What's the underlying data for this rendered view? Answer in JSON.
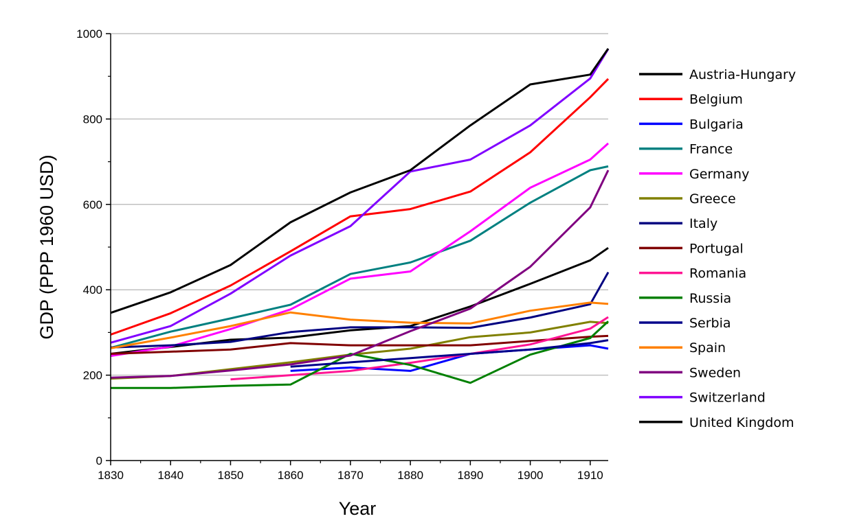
{
  "chart_data": {
    "type": "line",
    "xlabel": "Year",
    "ylabel": "GDP (PPP 1960 USD)",
    "xlim": [
      1830,
      1913
    ],
    "ylim": [
      0,
      1000
    ],
    "x_ticks": [
      1830,
      1840,
      1850,
      1860,
      1870,
      1880,
      1890,
      1900,
      1910
    ],
    "y_ticks": [
      0,
      200,
      400,
      600,
      800,
      1000
    ],
    "grid": "horizontal",
    "legend_position": "right",
    "series": [
      {
        "name": "Austria-Hungary",
        "color": "#000000",
        "x": [
          1830,
          1840,
          1850,
          1860,
          1870,
          1880,
          1890,
          1900,
          1910,
          1913
        ],
        "y": [
          250,
          266,
          283,
          288,
          305,
          315,
          361,
          414,
          469,
          498
        ]
      },
      {
        "name": "Belgium",
        "color": "#ff0000",
        "x": [
          1830,
          1840,
          1850,
          1860,
          1870,
          1880,
          1890,
          1900,
          1910,
          1913
        ],
        "y": [
          295,
          345,
          410,
          490,
          572,
          589,
          630,
          722,
          851,
          894
        ]
      },
      {
        "name": "Bulgaria",
        "color": "#0000ff",
        "x": [
          1860,
          1870,
          1880,
          1890,
          1900,
          1910,
          1913
        ],
        "y": [
          210,
          218,
          210,
          250,
          260,
          270,
          262
        ]
      },
      {
        "name": "France",
        "color": "#008080",
        "x": [
          1830,
          1840,
          1850,
          1860,
          1870,
          1880,
          1890,
          1900,
          1910,
          1913
        ],
        "y": [
          264,
          302,
          333,
          365,
          437,
          464,
          515,
          604,
          680,
          689
        ]
      },
      {
        "name": "Germany",
        "color": "#ff00ff",
        "x": [
          1830,
          1840,
          1850,
          1860,
          1870,
          1880,
          1890,
          1900,
          1910,
          1913
        ],
        "y": [
          245,
          267,
          308,
          354,
          426,
          443,
          537,
          639,
          705,
          743
        ]
      },
      {
        "name": "Greece",
        "color": "#808000",
        "x": [
          1830,
          1840,
          1850,
          1860,
          1870,
          1880,
          1890,
          1900,
          1910,
          1913
        ],
        "y": [
          192,
          198,
          214,
          230,
          248,
          262,
          289,
          300,
          325,
          322
        ]
      },
      {
        "name": "Italy",
        "color": "#000080",
        "x": [
          1830,
          1840,
          1850,
          1860,
          1870,
          1880,
          1890,
          1900,
          1910,
          1913
        ],
        "y": [
          265,
          270,
          278,
          301,
          312,
          312,
          311,
          335,
          366,
          441
        ]
      },
      {
        "name": "Portugal",
        "color": "#800000",
        "x": [
          1830,
          1840,
          1850,
          1860,
          1870,
          1880,
          1890,
          1900,
          1910,
          1913
        ],
        "y": [
          250,
          255,
          260,
          275,
          270,
          270,
          270,
          280,
          290,
          292
        ]
      },
      {
        "name": "Romania",
        "color": "#ff1493",
        "x": [
          1850,
          1860,
          1870,
          1880,
          1890,
          1900,
          1910,
          1913
        ],
        "y": [
          190,
          200,
          210,
          229,
          250,
          272,
          309,
          336
        ]
      },
      {
        "name": "Russia",
        "color": "#008000",
        "x": [
          1830,
          1840,
          1850,
          1860,
          1870,
          1880,
          1890,
          1900,
          1910,
          1913
        ],
        "y": [
          170,
          170,
          175,
          178,
          250,
          224,
          182,
          248,
          287,
          326
        ]
      },
      {
        "name": "Serbia",
        "color": "#00008b",
        "x": [
          1860,
          1870,
          1880,
          1890,
          1900,
          1910,
          1913
        ],
        "y": [
          220,
          230,
          240,
          250,
          260,
          275,
          282
        ]
      },
      {
        "name": "Spain",
        "color": "#ff8000",
        "x": [
          1830,
          1840,
          1850,
          1860,
          1870,
          1880,
          1890,
          1900,
          1910,
          1913
        ],
        "y": [
          263,
          288,
          315,
          347,
          330,
          323,
          321,
          351,
          370,
          367
        ]
      },
      {
        "name": "Sweden",
        "color": "#800080",
        "x": [
          1830,
          1840,
          1850,
          1860,
          1870,
          1880,
          1890,
          1900,
          1910,
          1913
        ],
        "y": [
          194,
          198,
          211,
          225,
          246,
          303,
          356,
          454,
          593,
          680
        ]
      },
      {
        "name": "Switzerland",
        "color": "#8000ff",
        "x": [
          1830,
          1840,
          1850,
          1860,
          1870,
          1880,
          1890,
          1900,
          1910,
          1913
        ],
        "y": [
          276,
          315,
          391,
          480,
          549,
          677,
          705,
          785,
          895,
          964
        ]
      },
      {
        "name": "United Kingdom",
        "color": "#000000",
        "x": [
          1830,
          1840,
          1850,
          1860,
          1870,
          1880,
          1890,
          1900,
          1910,
          1913
        ],
        "y": [
          346,
          394,
          458,
          558,
          628,
          680,
          785,
          881,
          904,
          965
        ]
      }
    ]
  }
}
